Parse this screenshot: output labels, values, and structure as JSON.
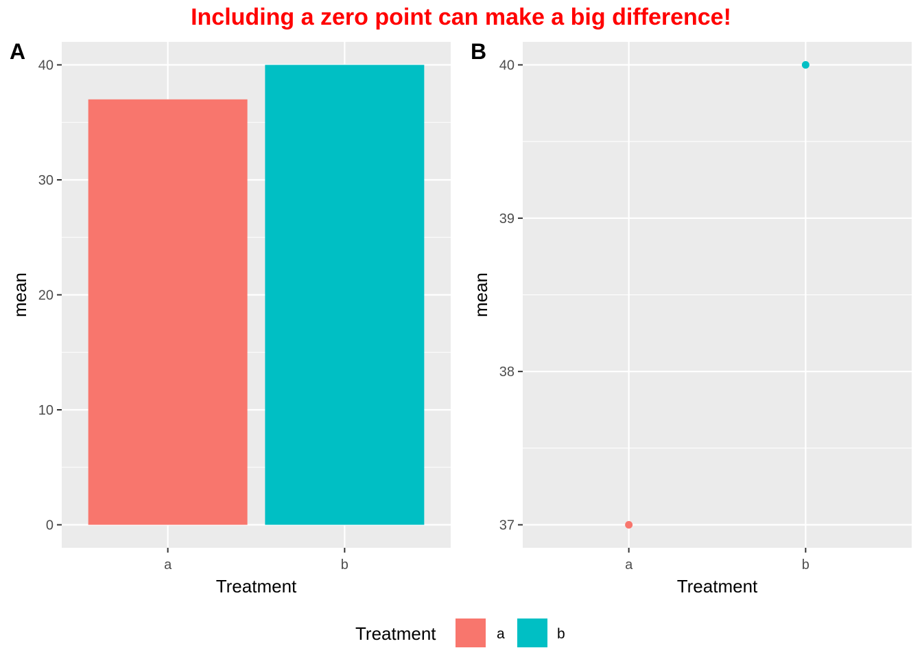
{
  "title": "Including a zero point can make a big difference!",
  "colors": {
    "title": "#ff0000",
    "panel_bg": "#ebebeb",
    "grid": "#ffffff",
    "a": "#f8766d",
    "b": "#00bfc4"
  },
  "legend": {
    "title": "Treatment",
    "placement": "bottom",
    "items": [
      {
        "label": "a",
        "color": "#f8766d"
      },
      {
        "label": "b",
        "color": "#00bfc4"
      }
    ]
  },
  "chart_data": [
    {
      "tag": "A",
      "type": "bar",
      "categories": [
        "a",
        "b"
      ],
      "values": [
        37,
        40
      ],
      "colors": [
        "#f8766d",
        "#00bfc4"
      ],
      "xlabel": "Treatment",
      "ylabel": "mean",
      "ylim": [
        -2,
        42
      ],
      "yticks": [
        0,
        10,
        20,
        30,
        40
      ],
      "yminor": [
        5,
        15,
        25,
        35
      ],
      "grid": true
    },
    {
      "tag": "B",
      "type": "scatter",
      "categories": [
        "a",
        "b"
      ],
      "values": [
        37,
        40
      ],
      "colors": [
        "#f8766d",
        "#00bfc4"
      ],
      "xlabel": "Treatment",
      "ylabel": "mean",
      "ylim": [
        36.85,
        40.15
      ],
      "yticks": [
        37,
        38,
        39,
        40
      ],
      "yminor": [
        37.5,
        38.5,
        39.5
      ],
      "grid": true
    }
  ]
}
